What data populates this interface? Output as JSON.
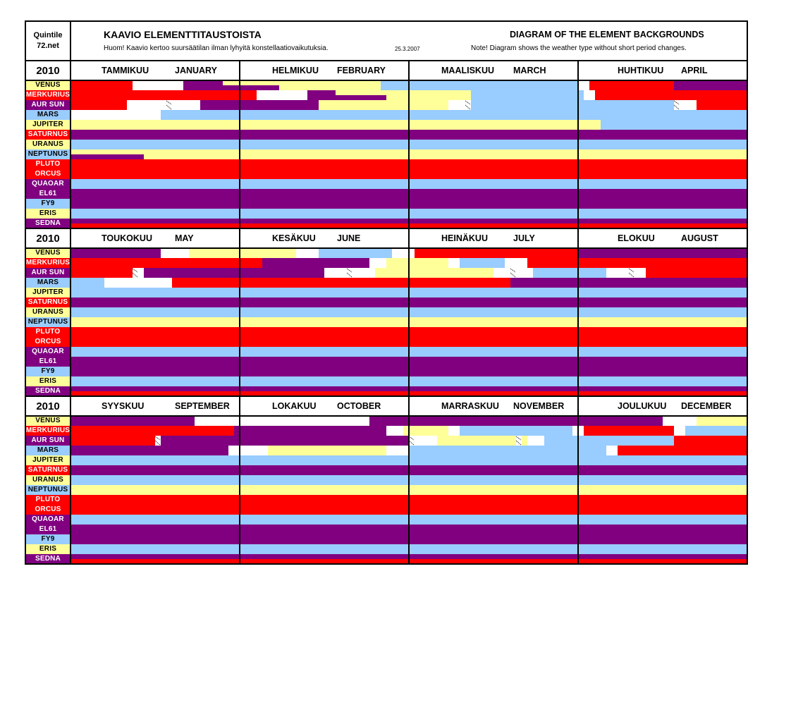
{
  "header": {
    "brand_line1": "Quintile",
    "brand_line2": "72.net",
    "title_fi": "KAAVIO ELEMENTTITAUSTOISTA",
    "note_fi": "Huom! Kaavio kertoo suursäätilan ilman lyhyitä konstellaatiovaikutuksia.",
    "date": "25.3.2007",
    "title_en": "DIAGRAM OF THE ELEMENT BACKGROUNDS",
    "note_en": "Note! Diagram shows the weather type without short period changes."
  },
  "year": "2010",
  "months": [
    {
      "fi": "TAMMIKUU",
      "en": "JANUARY"
    },
    {
      "fi": "HELMIKUU",
      "en": "FEBRUARY"
    },
    {
      "fi": "MAALISKUU",
      "en": "MARCH"
    },
    {
      "fi": "HUHTIKUU",
      "en": "APRIL"
    },
    {
      "fi": "TOUKOKUU",
      "en": "MAY"
    },
    {
      "fi": "KESÄKUU",
      "en": "JUNE"
    },
    {
      "fi": "HEINÄKUU",
      "en": "JULY"
    },
    {
      "fi": "ELOKUU",
      "en": "AUGUST"
    },
    {
      "fi": "SYYSKUU",
      "en": "SEPTEMBER"
    },
    {
      "fi": "LOKAKUU",
      "en": "OCTOBER"
    },
    {
      "fi": "MARRASKUU",
      "en": "NOVEMBER"
    },
    {
      "fi": "JOULUKUU",
      "en": "DECEMBER"
    }
  ],
  "colors": {
    "R": "#FF0000",
    "P": "#800080",
    "B": "#99CCFF",
    "Y": "#FFFF99",
    "W": "#FFFFFF"
  },
  "timeline_unit": "day (30 per month, 0-360)",
  "planets": [
    {
      "name": "VENUS",
      "label_color": "Y",
      "full": [
        [
          0,
          11,
          "R"
        ],
        [
          11,
          20,
          "W"
        ],
        [
          55,
          90,
          "B"
        ],
        [
          90,
          92,
          "W"
        ],
        [
          92,
          107,
          "R"
        ],
        [
          107,
          136,
          "P"
        ],
        [
          136,
          141,
          "W"
        ],
        [
          141,
          160,
          "Y"
        ],
        [
          160,
          164,
          "W"
        ],
        [
          164,
          177,
          "B"
        ],
        [
          177,
          181,
          "W"
        ],
        [
          181,
          210,
          "R"
        ],
        [
          210,
          262,
          "P"
        ],
        [
          262,
          293,
          "W"
        ],
        [
          293,
          345,
          "P"
        ],
        [
          345,
          351,
          "W"
        ],
        [
          351,
          360,
          "Y"
        ]
      ],
      "top": [
        [
          20,
          27,
          "P"
        ],
        [
          27,
          55,
          "Y"
        ]
      ],
      "bottom": [
        [
          20,
          37,
          "P"
        ],
        [
          37,
          55,
          "Y"
        ]
      ],
      "hatches": []
    },
    {
      "name": "MERKURIUS",
      "label_color": "R",
      "full": [
        [
          0,
          33,
          "R"
        ],
        [
          33,
          42,
          "W"
        ],
        [
          71,
          91,
          "B"
        ],
        [
          91,
          93,
          "W"
        ],
        [
          93,
          154,
          "R"
        ],
        [
          154,
          173,
          "P"
        ],
        [
          173,
          176,
          "W"
        ],
        [
          176,
          187,
          "Y"
        ],
        [
          187,
          189,
          "W"
        ],
        [
          189,
          197,
          "B"
        ],
        [
          197,
          201,
          "W"
        ],
        [
          201,
          269,
          "R"
        ],
        [
          269,
          296,
          "P"
        ],
        [
          296,
          299,
          "W"
        ],
        [
          299,
          307,
          "Y"
        ],
        [
          307,
          309,
          "W"
        ],
        [
          309,
          329,
          "B"
        ],
        [
          329,
          331,
          "W"
        ],
        [
          331,
          347,
          "R"
        ],
        [
          347,
          349,
          "W"
        ],
        [
          349,
          360,
          "B"
        ]
      ],
      "top": [
        [
          42,
          47,
          "P"
        ],
        [
          47,
          71,
          "Y"
        ]
      ],
      "bottom": [
        [
          42,
          56,
          "P"
        ],
        [
          56,
          71,
          "Y"
        ]
      ],
      "hatches": []
    },
    {
      "name": "AUR SUN",
      "label_color": "P",
      "full": [
        [
          0,
          10,
          "R"
        ],
        [
          10,
          23,
          "W"
        ],
        [
          23,
          44,
          "P"
        ],
        [
          44,
          67,
          "Y"
        ],
        [
          67,
          71,
          "W"
        ],
        [
          71,
          107,
          "B"
        ],
        [
          107,
          111,
          "W"
        ],
        [
          111,
          131,
          "R"
        ],
        [
          131,
          133,
          "W"
        ],
        [
          133,
          165,
          "P"
        ],
        [
          165,
          174,
          "W"
        ],
        [
          174,
          195,
          "Y"
        ],
        [
          195,
          202,
          "W"
        ],
        [
          202,
          215,
          "B"
        ],
        [
          215,
          222,
          "W"
        ],
        [
          222,
          255,
          "R"
        ],
        [
          255,
          256,
          "W"
        ],
        [
          256,
          300,
          "P"
        ],
        [
          300,
          305,
          "W"
        ],
        [
          305,
          319,
          "Y"
        ],
        [
          319,
          320,
          "W"
        ],
        [
          320,
          321,
          "Y"
        ],
        [
          321,
          324,
          "W"
        ],
        [
          324,
          347,
          "B"
        ],
        [
          347,
          360,
          "R"
        ]
      ],
      "top": [],
      "bottom": [],
      "hatches": [
        17,
        70,
        107,
        131,
        169,
        198,
        219,
        255,
        300,
        319
      ]
    },
    {
      "name": "MARS",
      "label_color": "B",
      "full": [
        [
          0,
          16,
          "W"
        ],
        [
          16,
          126,
          "B"
        ],
        [
          126,
          138,
          "W"
        ],
        [
          138,
          198,
          "R"
        ],
        [
          198,
          268,
          "P"
        ],
        [
          268,
          275,
          "W"
        ],
        [
          275,
          296,
          "Y"
        ],
        [
          296,
          300,
          "W"
        ],
        [
          300,
          335,
          "B"
        ],
        [
          335,
          337,
          "W"
        ],
        [
          337,
          360,
          "R"
        ]
      ],
      "top": [],
      "bottom": [],
      "hatches": []
    },
    {
      "name": "JUPITER",
      "label_color": "Y",
      "full": [
        [
          0,
          94,
          "Y"
        ],
        [
          94,
          360,
          "B"
        ]
      ],
      "top": [],
      "bottom": [],
      "hatches": []
    },
    {
      "name": "SATURNUS",
      "label_color": "R",
      "full": [
        [
          0,
          360,
          "P"
        ]
      ],
      "top": [],
      "bottom": [],
      "hatches": []
    },
    {
      "name": "URANUS",
      "label_color": "Y",
      "full": [
        [
          0,
          360,
          "B"
        ]
      ],
      "top": [],
      "bottom": [],
      "hatches": []
    },
    {
      "name": "NEPTUNUS",
      "label_color": "B",
      "full": [
        [
          0,
          360,
          "Y"
        ]
      ],
      "top": [],
      "bottom": [
        [
          0,
          13,
          "P"
        ]
      ],
      "hatches": []
    },
    {
      "name": "PLUTO",
      "label_color": "R",
      "full": [
        [
          0,
          360,
          "R"
        ]
      ],
      "top": [],
      "bottom": [],
      "hatches": []
    },
    {
      "name": "ORCUS",
      "label_color": "R",
      "full": [
        [
          0,
          360,
          "R"
        ]
      ],
      "top": [],
      "bottom": [],
      "hatches": []
    },
    {
      "name": "QUAOAR",
      "label_color": "P",
      "full": [
        [
          0,
          360,
          "B"
        ]
      ],
      "top": [],
      "bottom": [],
      "hatches": []
    },
    {
      "name": "EL61",
      "label_color": "P",
      "full": [
        [
          0,
          360,
          "P"
        ]
      ],
      "top": [],
      "bottom": [],
      "hatches": []
    },
    {
      "name": "FY9",
      "label_color": "B",
      "full": [
        [
          0,
          360,
          "P"
        ]
      ],
      "top": [],
      "bottom": [],
      "hatches": []
    },
    {
      "name": "ERIS",
      "label_color": "Y",
      "full": [
        [
          0,
          360,
          "B"
        ]
      ],
      "top": [],
      "bottom": [],
      "hatches": []
    },
    {
      "name": "SEDNA",
      "label_color": "P",
      "full": [
        [
          0,
          360,
          "P"
        ]
      ],
      "top": [],
      "bottom": [
        [
          0,
          360,
          "R"
        ]
      ],
      "hatches": []
    }
  ]
}
